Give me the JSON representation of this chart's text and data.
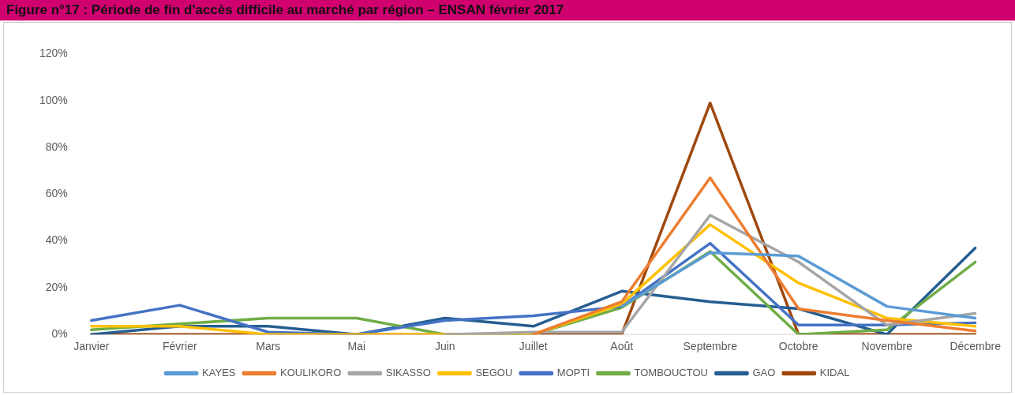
{
  "chart_data": {
    "type": "line",
    "title": "Figure n°17 : Période de fin d'accès difficile au marché par région – ENSAN février 2017",
    "categories": [
      "Janvier",
      "Février",
      "Mars",
      "Mai",
      "Juin",
      "Juillet",
      "Août",
      "Septembre",
      "Octobre",
      "Novembre",
      "Décembre"
    ],
    "series": [
      {
        "name": "KAYES",
        "color": "#5b9bd5",
        "values": [
          null,
          null,
          null,
          null,
          null,
          null,
          12,
          35,
          33.5,
          12,
          7
        ]
      },
      {
        "name": "KOULIKORO",
        "color": "#ed7d31",
        "values": [
          null,
          null,
          null,
          null,
          null,
          0,
          14,
          67,
          11,
          6,
          1.5
        ]
      },
      {
        "name": "SIKASSO",
        "color": "#a5a5a5",
        "values": [
          null,
          null,
          null,
          null,
          0,
          1,
          1,
          51,
          31,
          4,
          9
        ]
      },
      {
        "name": "SEGOU",
        "color": "#ffc000",
        "values": [
          3.5,
          3.5,
          0,
          0,
          0,
          0,
          13,
          47,
          22,
          7,
          3.5
        ]
      },
      {
        "name": "MOPTI",
        "color": "#4472c4",
        "values": [
          6,
          12.5,
          1,
          0,
          6,
          8,
          12,
          39,
          4,
          4,
          5
        ]
      },
      {
        "name": "TOMBOUCTOU",
        "color": "#70ad47",
        "values": [
          2,
          4.5,
          7,
          7,
          0,
          0,
          11.5,
          35.5,
          0,
          2,
          31
        ]
      },
      {
        "name": "GAO",
        "color": "#255e91",
        "values": [
          0,
          3.5,
          3.5,
          0,
          7,
          3.5,
          18.5,
          14,
          11,
          0,
          37
        ]
      },
      {
        "name": "KIDAL",
        "color": "#9e480e",
        "values": [
          0,
          0,
          0,
          0,
          0,
          0,
          0,
          99,
          0,
          0,
          0
        ]
      }
    ],
    "ylim": [
      0,
      120
    ],
    "yticks": [
      {
        "value": 0,
        "label": "0%"
      },
      {
        "value": 20,
        "label": "20%"
      },
      {
        "value": 40,
        "label": "40%"
      },
      {
        "value": 60,
        "label": "60%"
      },
      {
        "value": 80,
        "label": "80%"
      },
      {
        "value": 100,
        "label": "100%"
      },
      {
        "value": 120,
        "label": "120%"
      }
    ],
    "grid": false,
    "legend": "bottom",
    "marker": "none",
    "line_style": "solid"
  }
}
